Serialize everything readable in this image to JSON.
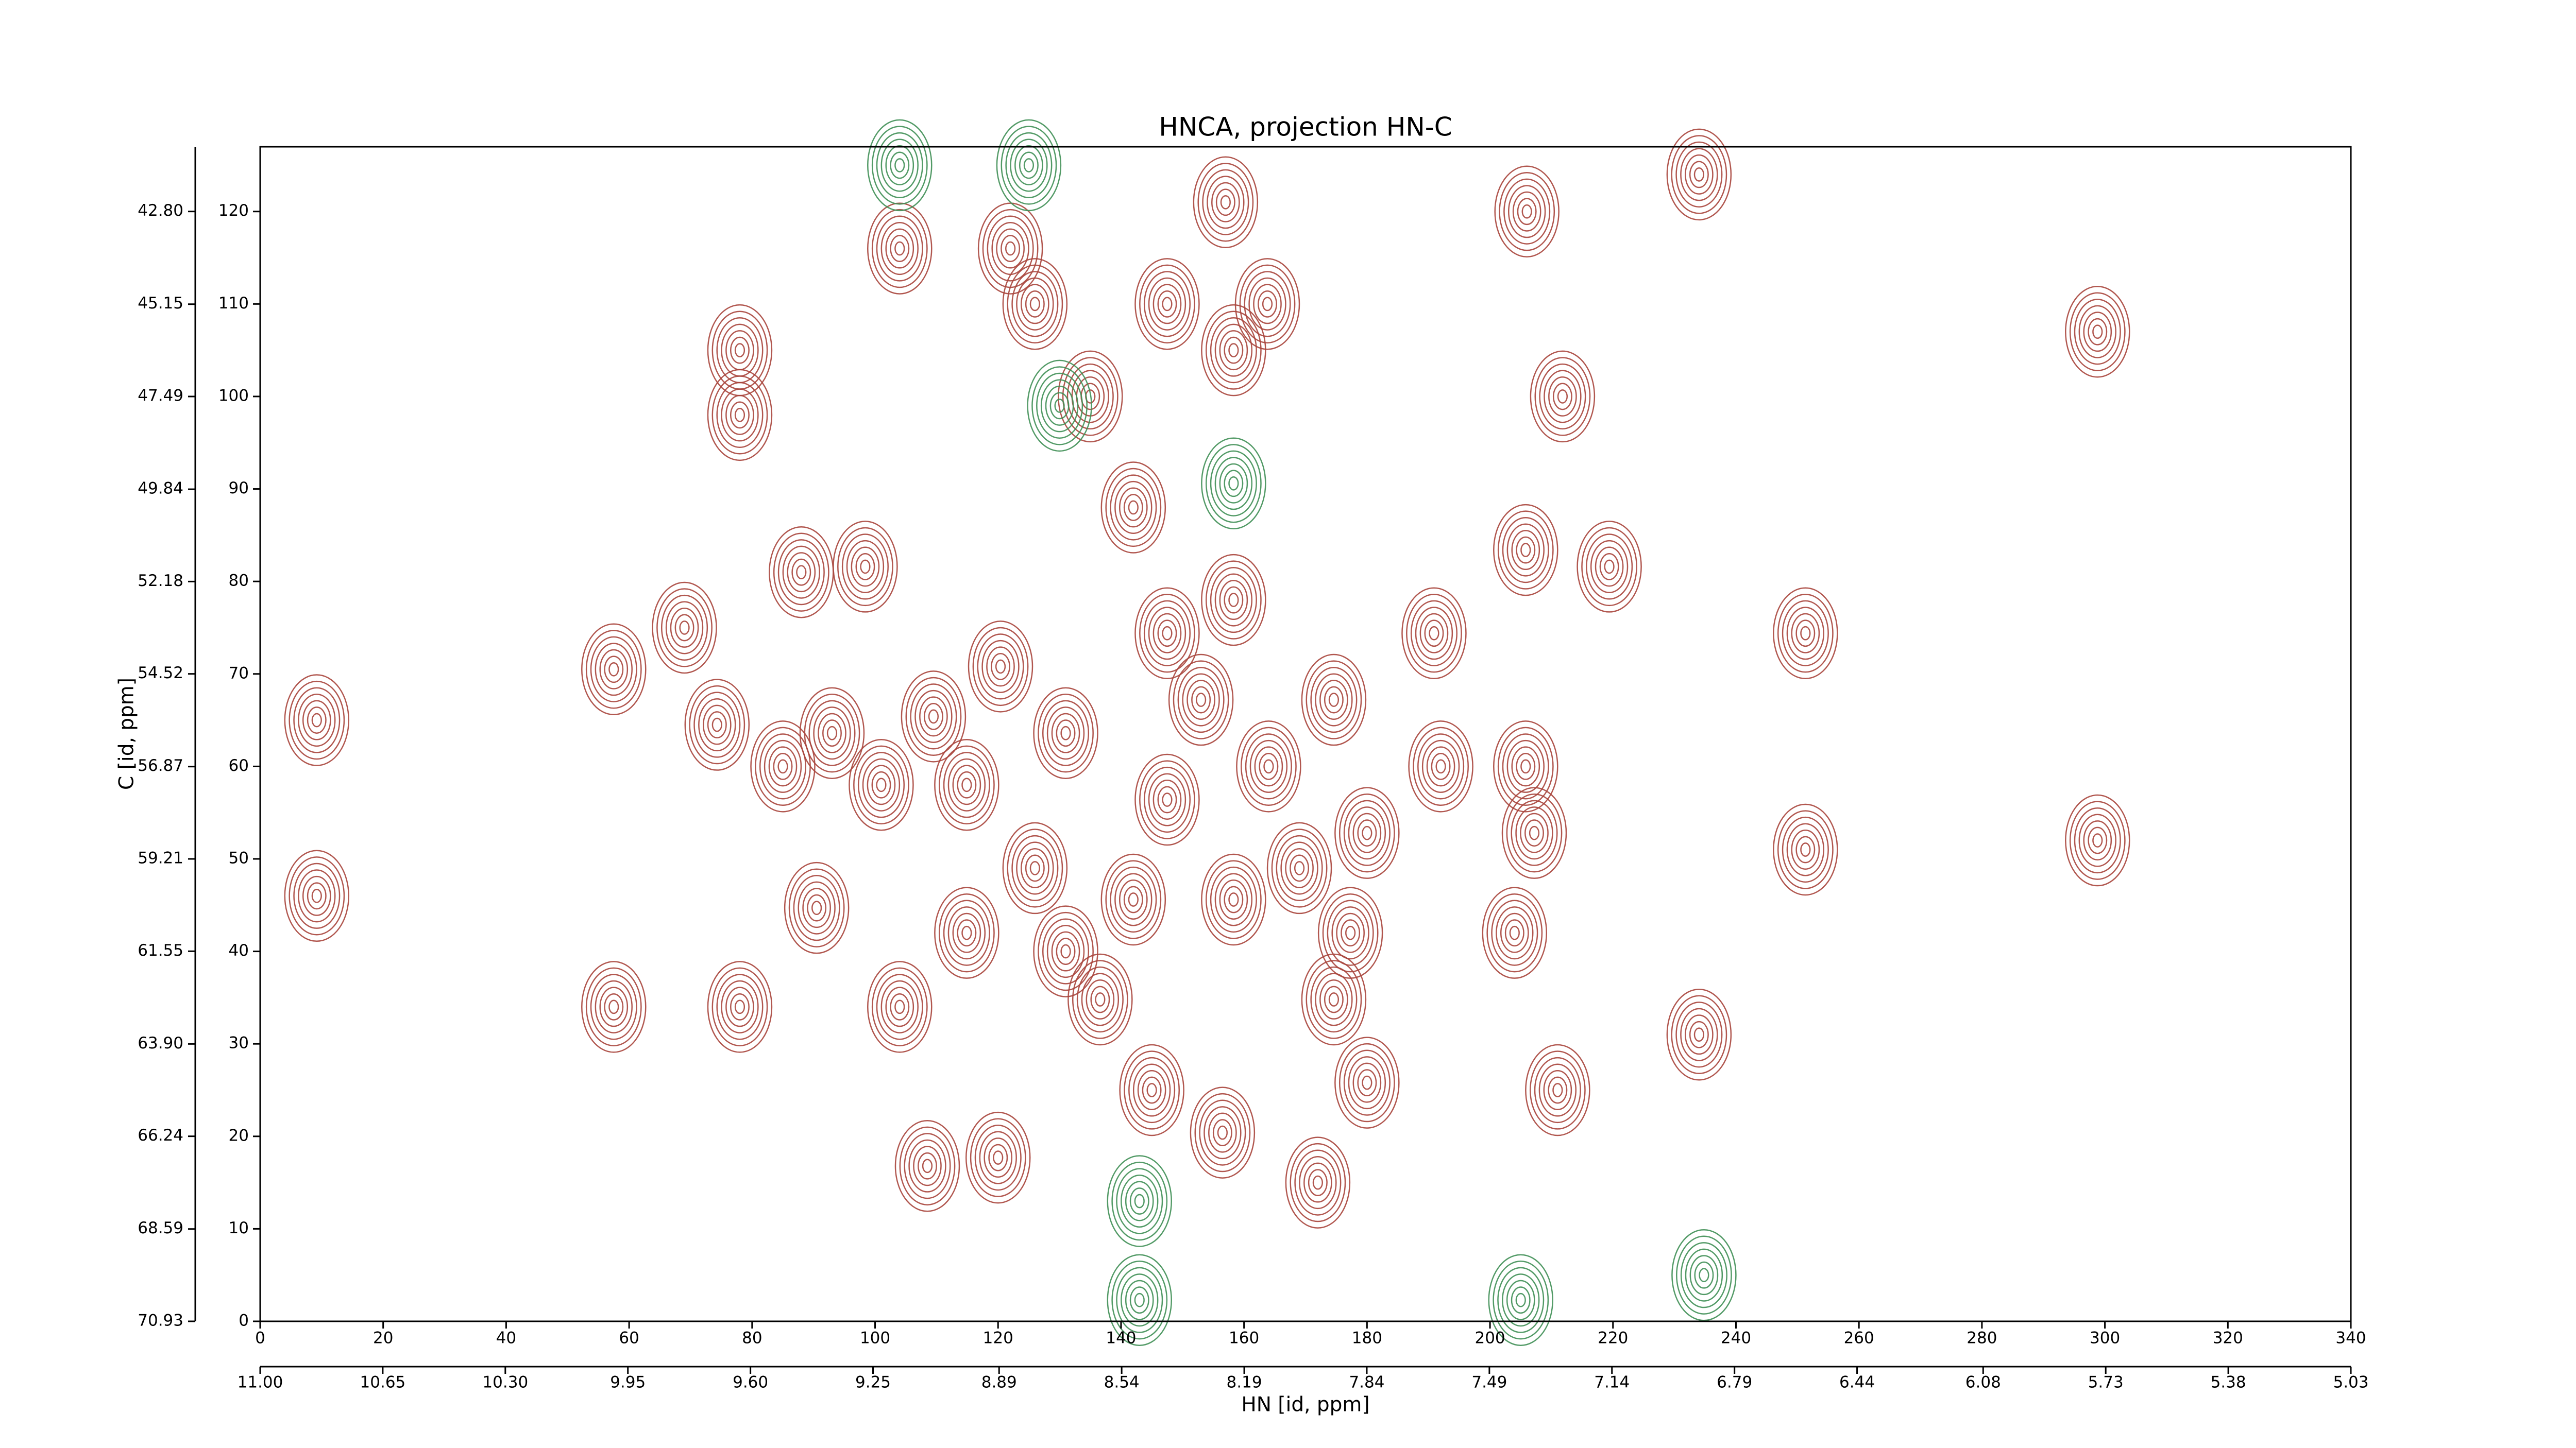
{
  "chart_data": {
    "type": "contour",
    "title": "HNCA, projection HN-C",
    "xlabel": "HN [id, ppm]",
    "ylabel": "C [id, ppm]",
    "xlim": [
      0,
      340
    ],
    "ylim": [
      0,
      127
    ],
    "xticks": [
      0,
      20,
      40,
      60,
      80,
      100,
      120,
      140,
      160,
      180,
      200,
      220,
      240,
      260,
      280,
      300,
      320,
      340
    ],
    "yticks": [
      0,
      10,
      20,
      30,
      40,
      50,
      60,
      70,
      80,
      90,
      100,
      110,
      120
    ],
    "x2lim": [
      11,
      5.03
    ],
    "x2ticks": [
      {
        "value": 11,
        "label": "11.00"
      },
      {
        "value": 10.65,
        "label": "10.65"
      },
      {
        "value": 10.3,
        "label": "10.30"
      },
      {
        "value": 9.95,
        "label": "9.95"
      },
      {
        "value": 9.6,
        "label": "9.60"
      },
      {
        "value": 9.25,
        "label": "9.25"
      },
      {
        "value": 8.89,
        "label": "8.89"
      },
      {
        "value": 8.54,
        "label": "8.54"
      },
      {
        "value": 8.19,
        "label": "8.19"
      },
      {
        "value": 7.84,
        "label": "7.84"
      },
      {
        "value": 7.49,
        "label": "7.49"
      },
      {
        "value": 7.14,
        "label": "7.14"
      },
      {
        "value": 6.79,
        "label": "6.79"
      },
      {
        "value": 6.44,
        "label": "6.44"
      },
      {
        "value": 6.08,
        "label": "6.08"
      },
      {
        "value": 5.73,
        "label": "5.73"
      },
      {
        "value": 5.38,
        "label": "5.38"
      },
      {
        "value": 5.03,
        "label": "5.03"
      }
    ],
    "y2lim": [
      70.93,
      41.16
    ],
    "y2ticks": [
      {
        "value": 70.93,
        "label": "70.93"
      },
      68.59,
      66.24,
      {
        "value": 63.9,
        "label": "63.90"
      },
      61.55,
      59.21,
      56.87,
      54.52,
      52.18,
      49.84,
      47.49,
      45.15,
      {
        "value": 42.8,
        "label": "42.80"
      }
    ],
    "series": [
      {
        "color": "#a8453c",
        "x": [
          9.2,
          9.2,
          57.5,
          57.5,
          69,
          78,
          78,
          78,
          88,
          90.5,
          74.3,
          85,
          98.4,
          104,
          104,
          108.5,
          122,
          126,
          120,
          135,
          142,
          145,
          147.5,
          157,
          158.3,
          163.8,
          156.5,
          172,
          174.6,
          180,
          192,
          205.8,
          206,
          211.8,
          205.8,
          219.4,
          211,
          234,
          234,
          251.3,
          251.3,
          298.8,
          298.8,
          204,
          207.2,
          109.5,
          120.4,
          131,
          147.5,
          158.3,
          174.6,
          190.9,
          126,
          142,
          158.3,
          169,
          114.9,
          131,
          147.5,
          93,
          101,
          164,
          180,
          177.3,
          136.6,
          114.9,
          153
        ],
        "y": [
          65,
          46,
          70.5,
          34,
          75,
          34,
          105,
          98,
          81,
          44.7,
          64.5,
          60,
          81.6,
          116,
          34,
          16.8,
          116,
          110,
          17.7,
          100,
          88,
          25,
          110,
          121,
          105,
          110,
          20.4,
          15,
          34.8,
          25.8,
          60,
          60,
          120,
          100,
          83.4,
          81.6,
          25,
          124,
          31,
          74.4,
          51,
          107,
          52,
          42,
          52.8,
          65.4,
          70.8,
          63.6,
          74.4,
          78,
          67.2,
          74.4,
          49,
          45.6,
          45.6,
          49,
          42,
          40,
          56.4,
          63.6,
          58,
          60,
          52.8,
          42,
          34.8,
          58,
          67.2
        ]
      },
      {
        "color": "#3f8f55",
        "x": [
          104,
          125,
          143,
          143,
          205,
          234.8,
          158.3,
          130
        ],
        "y": [
          125,
          125,
          13,
          2.3,
          2.3,
          5,
          90.6,
          99
        ]
      }
    ]
  }
}
